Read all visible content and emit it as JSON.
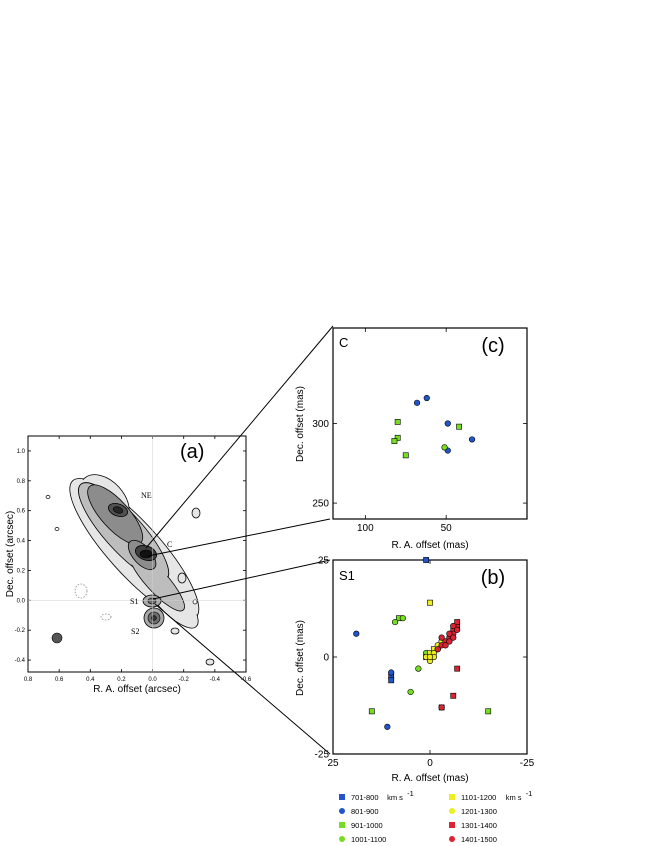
{
  "chart_data": [
    {
      "id": "a",
      "type": "contour",
      "panel_label": "(a)",
      "xlabel": "R. A. offset (arcsec)",
      "ylabel": "Dec. offset (arcsec)",
      "xlim": [
        0.8,
        -0.6
      ],
      "ylim": [
        -0.48,
        1.1
      ],
      "x_ticks": [
        "0.8",
        "0.6",
        "0.4",
        "0.2",
        "0.0",
        "-0.2",
        "-0.4",
        "-0.6"
      ],
      "x_tick_values": [
        0.8,
        0.6,
        0.4,
        0.2,
        0.0,
        -0.2,
        -0.4,
        -0.6
      ],
      "y_ticks": [
        "1.0",
        "0.8",
        "0.6",
        "0.4",
        "0.2",
        "0.0",
        "-0.2",
        "-0.4"
      ],
      "y_tick_values": [
        1.0,
        0.8,
        0.6,
        0.4,
        0.2,
        0.0,
        -0.2,
        -0.4
      ],
      "annotations": [
        {
          "text": "NE",
          "x": 0.05,
          "y": 0.48
        },
        {
          "text": "C",
          "x": -0.02,
          "y": 0.29
        },
        {
          "text": "S1",
          "x": 0.08,
          "y": 0.0
        },
        {
          "text": "S2",
          "x": 0.08,
          "y": -0.2
        }
      ],
      "beam_position": [
        0.65,
        -0.27
      ]
    },
    {
      "id": "c",
      "type": "scatter",
      "panel_label": "(c)",
      "corner_label": "C",
      "xlabel": "R. A. offset (mas)",
      "ylabel": "Dec. offset (mas)",
      "xlim": [
        120,
        0
      ],
      "ylim": [
        240,
        360
      ],
      "x_ticks": [
        "100",
        "50"
      ],
      "x_tick_values": [
        100,
        50
      ],
      "y_ticks": [
        "300",
        "250"
      ],
      "y_tick_values": [
        300,
        250
      ],
      "points": [
        {
          "x": 68,
          "y": 313,
          "group": "801-900"
        },
        {
          "x": 62,
          "y": 316,
          "group": "801-900"
        },
        {
          "x": 49,
          "y": 300,
          "group": "801-900"
        },
        {
          "x": 49,
          "y": 283,
          "group": "801-900"
        },
        {
          "x": 34,
          "y": 290,
          "group": "801-900"
        },
        {
          "x": 80,
          "y": 301,
          "group": "901-1000"
        },
        {
          "x": 80,
          "y": 291,
          "group": "901-1000"
        },
        {
          "x": 82,
          "y": 289,
          "group": "901-1000"
        },
        {
          "x": 75,
          "y": 280,
          "group": "901-1000"
        },
        {
          "x": 42,
          "y": 298,
          "group": "901-1000"
        },
        {
          "x": 51,
          "y": 285,
          "group": "1001-1100"
        }
      ]
    },
    {
      "id": "b",
      "type": "scatter",
      "panel_label": "(b)",
      "corner_label": "S1",
      "xlabel": "R. A. offset (mas)",
      "ylabel": "Dec. offset (mas)",
      "xlim": [
        25,
        -25
      ],
      "ylim": [
        -25,
        25
      ],
      "x_ticks": [
        "25",
        "0",
        "-25"
      ],
      "x_tick_values": [
        25,
        0,
        -25
      ],
      "y_ticks": [
        "25",
        "0",
        "-25"
      ],
      "y_tick_values": [
        25,
        0,
        -25
      ],
      "points": [
        {
          "x": 1,
          "y": 25,
          "group": "701-800"
        },
        {
          "x": 10,
          "y": -5,
          "group": "701-800"
        },
        {
          "x": 10,
          "y": -6,
          "group": "701-800"
        },
        {
          "x": 19,
          "y": 6,
          "group": "801-900"
        },
        {
          "x": 10,
          "y": -4,
          "group": "801-900"
        },
        {
          "x": 11,
          "y": -18,
          "group": "801-900"
        },
        {
          "x": 15,
          "y": -14,
          "group": "901-1000"
        },
        {
          "x": -15,
          "y": -14,
          "group": "901-1000"
        },
        {
          "x": 8,
          "y": 10,
          "group": "901-1000"
        },
        {
          "x": 7,
          "y": 10,
          "group": "1001-1100"
        },
        {
          "x": 9,
          "y": 9,
          "group": "1001-1100"
        },
        {
          "x": 3,
          "y": -3,
          "group": "1001-1100"
        },
        {
          "x": 5,
          "y": -9,
          "group": "1001-1100"
        },
        {
          "x": 1,
          "y": 1,
          "group": "1001-1100"
        },
        {
          "x": 0,
          "y": 14,
          "group": "1101-1200"
        },
        {
          "x": 1,
          "y": 0,
          "group": "1101-1200"
        },
        {
          "x": 0,
          "y": 1,
          "group": "1101-1200"
        },
        {
          "x": -1,
          "y": 2,
          "group": "1101-1200"
        },
        {
          "x": 0,
          "y": -1,
          "group": "1201-1300"
        },
        {
          "x": 1,
          "y": 0,
          "group": "1201-1300"
        },
        {
          "x": -1,
          "y": 1,
          "group": "1201-1300"
        },
        {
          "x": -2,
          "y": 2,
          "group": "1201-1300"
        },
        {
          "x": -2,
          "y": 3,
          "group": "1201-1300"
        },
        {
          "x": -3,
          "y": 4,
          "group": "1201-1300"
        },
        {
          "x": -1,
          "y": 0,
          "group": "1201-1300"
        },
        {
          "x": 0,
          "y": 0,
          "group": "1201-1300"
        },
        {
          "x": -7,
          "y": 8,
          "group": "1301-1400"
        },
        {
          "x": -7,
          "y": 9,
          "group": "1301-1400"
        },
        {
          "x": -6,
          "y": 7,
          "group": "1301-1400"
        },
        {
          "x": -7,
          "y": -3,
          "group": "1301-1400"
        },
        {
          "x": -6,
          "y": -10,
          "group": "1301-1400"
        },
        {
          "x": -3,
          "y": -13,
          "group": "1301-1400"
        },
        {
          "x": -3,
          "y": 3,
          "group": "1401-1500"
        },
        {
          "x": -4,
          "y": 4,
          "group": "1401-1500"
        },
        {
          "x": -5,
          "y": 5,
          "group": "1401-1500"
        },
        {
          "x": -6,
          "y": 6,
          "group": "1401-1500"
        },
        {
          "x": -4,
          "y": 3,
          "group": "1401-1500"
        },
        {
          "x": -5,
          "y": 6,
          "group": "1401-1500"
        },
        {
          "x": -6,
          "y": 8,
          "group": "1401-1500"
        },
        {
          "x": -7,
          "y": 7,
          "group": "1401-1500"
        },
        {
          "x": -2,
          "y": 2,
          "group": "1401-1500"
        },
        {
          "x": -3,
          "y": 5,
          "group": "1401-1500"
        },
        {
          "x": -5,
          "y": 4,
          "group": "1401-1500"
        },
        {
          "x": -6,
          "y": 5,
          "group": "1401-1500"
        },
        {
          "x": -3,
          "y": -13,
          "group": "1401-1500"
        }
      ]
    }
  ],
  "legend": [
    {
      "label": "701-800",
      "unit": "km s",
      "sup": "-1",
      "color": "#2255cc",
      "marker": "square"
    },
    {
      "label": "801-900",
      "color": "#2255cc",
      "marker": "circle"
    },
    {
      "label": "901-1000",
      "color": "#77dd22",
      "marker": "square"
    },
    {
      "label": "1001-1100",
      "color": "#77dd22",
      "marker": "circle"
    },
    {
      "label": "1101-1200",
      "unit": "km s",
      "sup": "-1",
      "color": "#eeee22",
      "marker": "square"
    },
    {
      "label": "1201-1300",
      "color": "#eeee22",
      "marker": "circle"
    },
    {
      "label": "1301-1400",
      "color": "#dd2233",
      "marker": "square"
    },
    {
      "label": "1401-1500",
      "color": "#dd2233",
      "marker": "circle"
    }
  ]
}
